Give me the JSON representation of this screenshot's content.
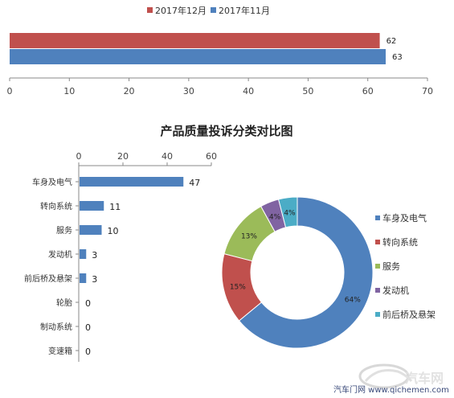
{
  "chart_data": [
    {
      "type": "bar",
      "orientation": "horizontal",
      "title": "",
      "categories": [
        ""
      ],
      "series": [
        {
          "name": "2017年12月",
          "values": [
            62
          ],
          "color": "#C0504D"
        },
        {
          "name": "2017年11月",
          "values": [
            63
          ],
          "color": "#4F81BD"
        }
      ],
      "xlim": [
        0,
        70
      ],
      "xticks": [
        "0",
        "10",
        "20",
        "30",
        "40",
        "50",
        "60",
        "70"
      ],
      "legend_position": "top",
      "grid": false
    },
    {
      "type": "bar",
      "orientation": "horizontal",
      "title": "产品质量投诉分类对比图",
      "categories": [
        "车身及电气",
        "转向系统",
        "服务",
        "发动机",
        "前后桥及悬架",
        "轮胎",
        "制动系统",
        "变速箱"
      ],
      "values": [
        47,
        11,
        10,
        3,
        3,
        0,
        0,
        0
      ],
      "color": "#4F81BD",
      "xlim": [
        0,
        60
      ],
      "xticks": [
        "0",
        "20",
        "40",
        "60"
      ],
      "axis_position": "top",
      "grid": false
    },
    {
      "type": "pie",
      "style": "donut",
      "labels": [
        "车身及电气",
        "转向系统",
        "服务",
        "发动机",
        "前后桥及悬架"
      ],
      "values": [
        64,
        15,
        13,
        4,
        4
      ],
      "value_labels": [
        "64%",
        "15%",
        "13%",
        "4%",
        "4%"
      ],
      "colors": [
        "#4F81BD",
        "#C0504D",
        "#9BBB59",
        "#8064A2",
        "#4BACC6"
      ],
      "legend_position": "right"
    }
  ],
  "watermark": {
    "text": "汽车门网 www.qichemen.com",
    "logo_text": "汽车网"
  }
}
